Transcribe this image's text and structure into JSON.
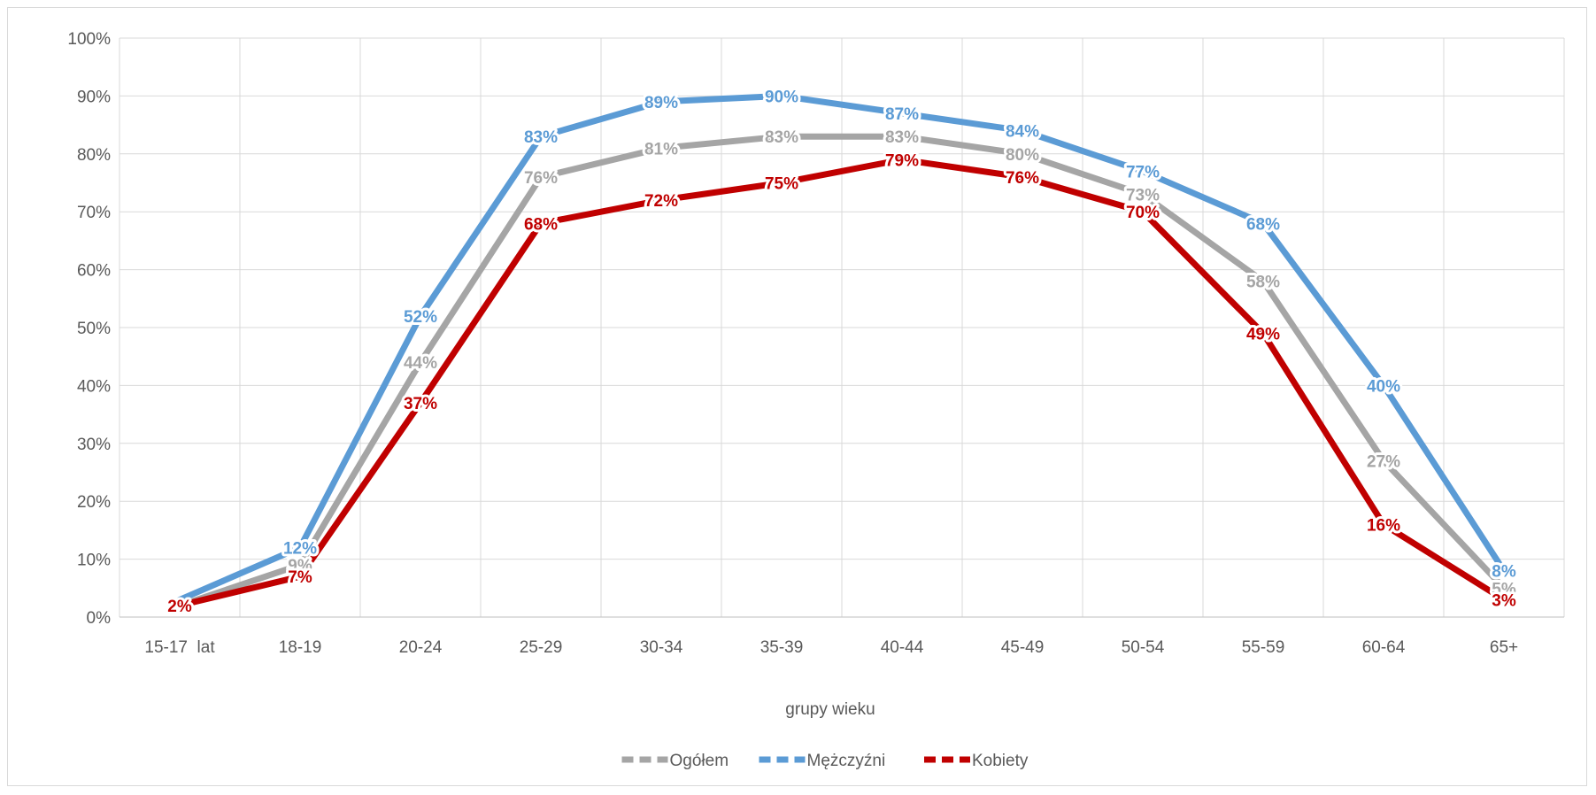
{
  "chart_data": {
    "type": "line",
    "title": "",
    "xlabel": "grupy wieku",
    "ylabel": "",
    "ylim": [
      0,
      100
    ],
    "y_ticks": [
      "0%",
      "10%",
      "20%",
      "30%",
      "40%",
      "50%",
      "60%",
      "70%",
      "80%",
      "90%",
      "100%"
    ],
    "categories": [
      "15-17  lat",
      "18-19",
      "20-24",
      "25-29",
      "30-34",
      "35-39",
      "40-44",
      "45-49",
      "50-54",
      "55-59",
      "60-64",
      "65+"
    ],
    "grid": true,
    "legend_position": "bottom",
    "series": [
      {
        "name": "Ogółem",
        "color": "#a5a5a5",
        "values": [
          2,
          9,
          44,
          76,
          81,
          83,
          83,
          80,
          73,
          58,
          27,
          5
        ],
        "labels": [
          "",
          "9%",
          "44%",
          "76%",
          "81%",
          "83%",
          "83%",
          "80%",
          "73%",
          "58%",
          "27%",
          "5%"
        ]
      },
      {
        "name": "Mężczyźni",
        "color": "#5b9bd5",
        "values": [
          3,
          12,
          52,
          83,
          89,
          90,
          87,
          84,
          77,
          68,
          40,
          8
        ],
        "labels": [
          "",
          "12%",
          "52%",
          "83%",
          "89%",
          "90%",
          "87%",
          "84%",
          "77%",
          "68%",
          "40%",
          "8%"
        ]
      },
      {
        "name": "Kobiety",
        "color": "#c00000",
        "values": [
          2,
          7,
          37,
          68,
          72,
          75,
          79,
          76,
          70,
          49,
          16,
          3
        ],
        "labels": [
          "2%",
          "7%",
          "37%",
          "68%",
          "72%",
          "75%",
          "79%",
          "76%",
          "70%",
          "49%",
          "16%",
          "3%"
        ]
      }
    ]
  }
}
